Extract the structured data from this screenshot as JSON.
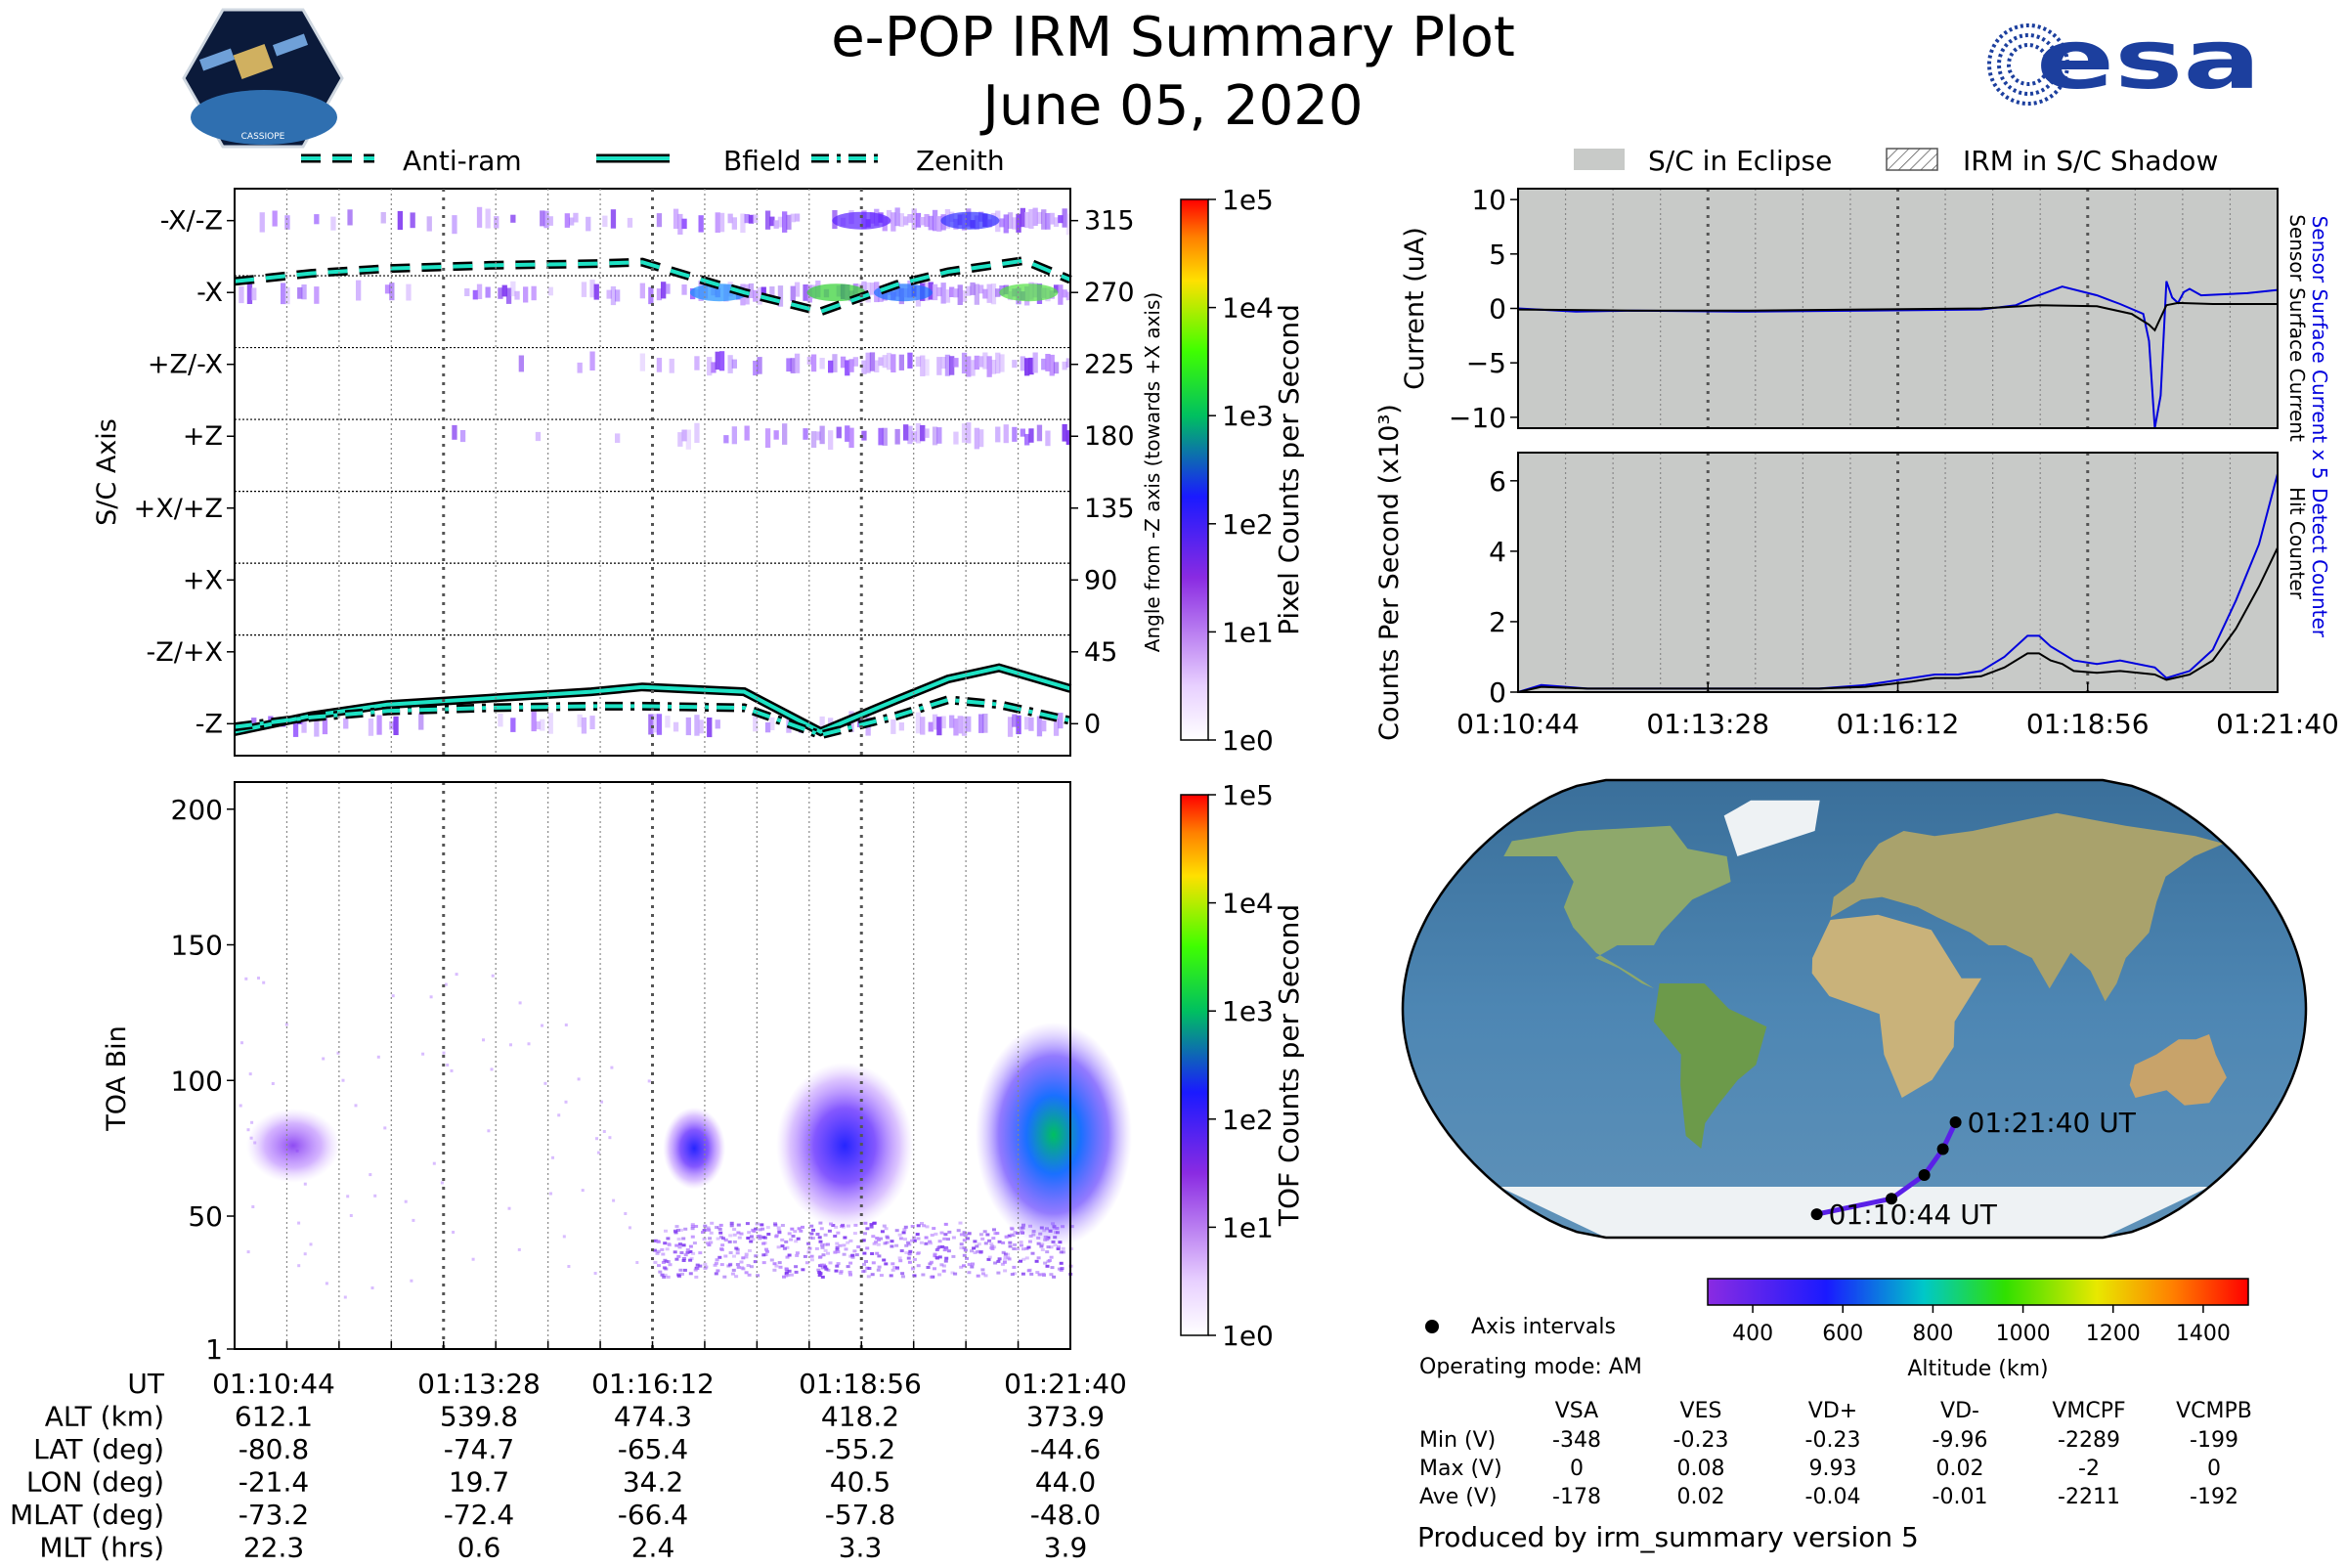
{
  "header": {
    "title": "e-POP IRM Summary Plot",
    "date": "June 05, 2020",
    "left_logo_text": "CASSIOPE",
    "right_logo_text": "esa"
  },
  "colors": {
    "bfield": "#1de2c4",
    "sensor_current": "#0000dd",
    "hit_counter": "#000000",
    "eclipse_gray": "#c8cac8",
    "track": "#5a20e8"
  },
  "chart_data": [
    {
      "id": "angle_panel",
      "type": "heatmap",
      "legend": [
        "Anti-ram",
        "Bfield",
        "Zenith"
      ],
      "legend_placement": "top",
      "ylabel": "S/C Axis",
      "y2label": "Angle from -Z axis (towards +X axis)",
      "y_ticks": [
        "-X/-Z",
        "-X",
        "+Z/-X",
        "+Z",
        "+X/+Z",
        "+X",
        "-Z/+X",
        "-Z"
      ],
      "y2_ticks": [
        "315",
        "270",
        "225",
        "180",
        "135",
        "90",
        "45",
        "0"
      ],
      "ylim": [
        -20,
        335
      ],
      "xlim": [
        0,
        656
      ],
      "colorbar_label": "Pixel Counts per Second",
      "colorbar_ticks": [
        "1e5",
        "1e4",
        "1e3",
        "1e2",
        "1e1",
        "1e0"
      ],
      "series": [
        {
          "name": "Anti-ram",
          "x": [
            0,
            60,
            120,
            200,
            280,
            320,
            400,
            460,
            520,
            560,
            620,
            656
          ],
          "values": [
            277,
            282,
            285,
            287,
            288,
            289,
            270,
            258,
            275,
            283,
            290,
            278
          ]
        },
        {
          "name": "Bfield",
          "x": [
            0,
            60,
            120,
            200,
            280,
            320,
            400,
            460,
            520,
            560,
            600,
            656
          ],
          "values": [
            -5,
            5,
            12,
            16,
            20,
            23,
            20,
            -5,
            15,
            28,
            35,
            22
          ]
        },
        {
          "name": "Zenith",
          "x": [
            0,
            60,
            120,
            200,
            280,
            320,
            400,
            460,
            520,
            560,
            600,
            656
          ],
          "values": [
            -2,
            4,
            8,
            10,
            11,
            11,
            10,
            -7,
            5,
            15,
            12,
            2
          ]
        }
      ]
    },
    {
      "id": "toa_panel",
      "type": "heatmap",
      "ylabel": "TOA Bin",
      "y_ticks": [
        "200",
        "150",
        "100",
        "50",
        "1"
      ],
      "ylim": [
        1,
        210
      ],
      "xlim": [
        0,
        656
      ],
      "colorbar_label": "TOF Counts per Second",
      "colorbar_ticks": [
        "1e5",
        "1e4",
        "1e3",
        "1e2",
        "1e1",
        "1e0"
      ]
    },
    {
      "id": "current_panel",
      "type": "line",
      "legend": [
        "S/C in Eclipse",
        "IRM in S/C Shadow"
      ],
      "legend_placement": "top",
      "ylabel": "Current (uA)",
      "y2labels": [
        "Sensor Surface Current x 5",
        "Sensor Surface Current"
      ],
      "y_ticks": [
        "10",
        "5",
        "0",
        "−5",
        "−10"
      ],
      "ylim": [
        -11,
        11
      ],
      "xlim": [
        0,
        656
      ],
      "series": [
        {
          "name": "Sensor Surface Current x 5",
          "x": [
            0,
            50,
            100,
            200,
            300,
            400,
            430,
            450,
            470,
            500,
            520,
            540,
            545,
            550,
            555,
            560,
            565,
            570,
            575,
            580,
            590,
            610,
            630,
            656
          ],
          "values": [
            0,
            -0.3,
            -0.2,
            -0.3,
            -0.2,
            -0.1,
            0.3,
            1.2,
            2,
            1.2,
            0.4,
            -0.5,
            -3,
            -11,
            -8,
            2.5,
            1,
            0.5,
            1.5,
            1.8,
            1.2,
            1.3,
            1.4,
            1.7
          ]
        },
        {
          "name": "Sensor Surface Current",
          "x": [
            0,
            100,
            200,
            300,
            400,
            450,
            500,
            530,
            545,
            550,
            560,
            570,
            600,
            656
          ],
          "values": [
            -0.1,
            -0.2,
            -0.2,
            -0.1,
            0,
            0.3,
            0.2,
            -0.5,
            -1.5,
            -2,
            0.3,
            0.5,
            0.4,
            0.4
          ]
        }
      ]
    },
    {
      "id": "counts_panel",
      "type": "line",
      "ylabel": "Counts Per Second (x10³)",
      "y2labels": [
        "Detect Counter",
        "Hit Counter"
      ],
      "y_ticks": [
        "6",
        "4",
        "2",
        "0"
      ],
      "ylim": [
        0,
        6.8
      ],
      "xlim": [
        0,
        656
      ],
      "x_ticks": [
        "01:10:44",
        "01:13:28",
        "01:16:12",
        "01:18:56",
        "01:21:40"
      ],
      "series": [
        {
          "name": "Detect Counter",
          "x": [
            0,
            20,
            60,
            120,
            200,
            260,
            300,
            340,
            360,
            380,
            400,
            420,
            440,
            450,
            460,
            470,
            480,
            500,
            520,
            550,
            560,
            580,
            600,
            620,
            640,
            656
          ],
          "values": [
            0,
            0.2,
            0.1,
            0.1,
            0.1,
            0.1,
            0.2,
            0.4,
            0.5,
            0.5,
            0.6,
            1,
            1.6,
            1.6,
            1.3,
            1.1,
            0.9,
            0.8,
            0.9,
            0.7,
            0.4,
            0.6,
            1.2,
            2.6,
            4.2,
            6.2
          ]
        },
        {
          "name": "Hit Counter",
          "x": [
            0,
            20,
            60,
            120,
            200,
            260,
            300,
            340,
            360,
            380,
            400,
            420,
            440,
            450,
            460,
            470,
            480,
            500,
            520,
            550,
            560,
            580,
            600,
            620,
            640,
            656
          ],
          "values": [
            0,
            0.15,
            0.1,
            0.1,
            0.1,
            0.1,
            0.15,
            0.3,
            0.4,
            0.4,
            0.45,
            0.7,
            1.1,
            1.1,
            0.9,
            0.8,
            0.6,
            0.55,
            0.6,
            0.5,
            0.35,
            0.5,
            0.9,
            1.8,
            3,
            4.1
          ]
        }
      ]
    },
    {
      "id": "orbit_map",
      "type": "scatter",
      "labels": [
        "01:21:40 UT",
        "01:10:44 UT"
      ],
      "points": [
        {
          "lon": -21.4,
          "lat": -80.8
        },
        {
          "lon": 19.7,
          "lat": -74.7
        },
        {
          "lon": 34.2,
          "lat": -65.4
        },
        {
          "lon": 40.5,
          "lat": -55.2
        },
        {
          "lon": 44.0,
          "lat": -44.6
        }
      ],
      "colorbar_label": "Altitude (km)",
      "colorbar_ticks": [
        "400",
        "600",
        "800",
        "1000",
        "1200",
        "1400"
      ],
      "colorbar_range": [
        300,
        1500
      ],
      "legend": "Axis intervals"
    }
  ],
  "ephemeris": {
    "headers": [
      "UT",
      "ALT (km)",
      "LAT (deg)",
      "LON (deg)",
      "MLAT (deg)",
      "MLT (hrs)"
    ],
    "columns": [
      [
        "01:10:44",
        "612.1",
        "-80.8",
        "-21.4",
        "-73.2",
        "22.3"
      ],
      [
        "01:13:28",
        "539.8",
        "-74.7",
        "19.7",
        "-72.4",
        "0.6"
      ],
      [
        "01:16:12",
        "474.3",
        "-65.4",
        "34.2",
        "-66.4",
        "2.4"
      ],
      [
        "01:18:56",
        "418.2",
        "-55.2",
        "40.5",
        "-57.8",
        "3.3"
      ],
      [
        "01:21:40",
        "373.9",
        "-44.6",
        "44.0",
        "-48.0",
        "3.9"
      ]
    ]
  },
  "voltages": {
    "operating_mode": "Operating mode: AM",
    "columns": [
      "VSA",
      "VES",
      "VD+",
      "VD-",
      "VMCPF",
      "VCMPB"
    ],
    "rows": [
      {
        "label": "Min (V)",
        "values": [
          "-348",
          "-0.23",
          "-0.23",
          "-9.96",
          "-2289",
          "-199"
        ]
      },
      {
        "label": "Max (V)",
        "values": [
          "0",
          "0.08",
          "9.93",
          "0.02",
          "-2",
          "0"
        ]
      },
      {
        "label": "Ave (V)",
        "values": [
          "-178",
          "0.02",
          "-0.04",
          "-0.01",
          "-2211",
          "-192"
        ]
      }
    ]
  },
  "footer": "Produced by irm_summary version 5"
}
